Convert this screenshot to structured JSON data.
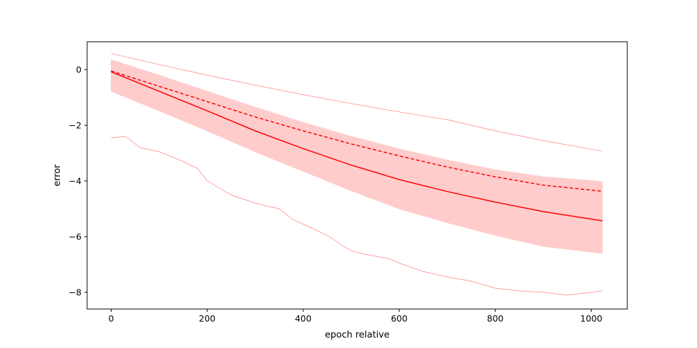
{
  "chart_data": {
    "type": "line",
    "xlabel": "epoch relative",
    "ylabel": "error",
    "xlim": [
      -50,
      1075
    ],
    "ylim": [
      -8.6,
      1.0
    ],
    "x_ticks": [
      0,
      200,
      400,
      600,
      800,
      1000
    ],
    "y_ticks": [
      0,
      -2,
      -4,
      -6,
      -8
    ],
    "x_tick_labels": [
      "0",
      "200",
      "400",
      "600",
      "800",
      "1000"
    ],
    "y_tick_labels": [
      "0",
      "−2",
      "−4",
      "−6",
      "−8"
    ],
    "grid": false,
    "colors": {
      "line": "#ff0000",
      "band": "#ffcccc",
      "thin": "#ff7f7f"
    },
    "series": [
      {
        "style": "solid",
        "x": [
          0,
          100,
          200,
          300,
          400,
          500,
          600,
          700,
          800,
          900,
          1023
        ],
        "y": [
          -0.08,
          -0.78,
          -1.48,
          -2.2,
          -2.84,
          -3.43,
          -3.95,
          -4.38,
          -4.76,
          -5.1,
          -5.43
        ]
      },
      {
        "style": "dashed",
        "x": [
          0,
          100,
          200,
          300,
          400,
          500,
          600,
          700,
          800,
          900,
          1023
        ],
        "y": [
          -0.05,
          -0.6,
          -1.15,
          -1.7,
          -2.2,
          -2.67,
          -3.1,
          -3.5,
          -3.85,
          -4.15,
          -4.37
        ]
      },
      {
        "style": "thin-upper",
        "x": [
          0,
          100,
          200,
          300,
          400,
          500,
          600,
          700,
          800,
          900,
          1023
        ],
        "y": [
          0.58,
          0.18,
          -0.2,
          -0.56,
          -0.9,
          -1.22,
          -1.52,
          -1.8,
          -2.2,
          -2.55,
          -2.93
        ]
      },
      {
        "style": "thin-lower",
        "x": [
          0,
          30,
          60,
          100,
          150,
          180,
          200,
          250,
          300,
          350,
          380,
          400,
          450,
          480,
          500,
          520,
          550,
          580,
          600,
          650,
          700,
          750,
          800,
          850,
          900,
          950,
          1000,
          1023
        ],
        "y": [
          -2.45,
          -2.4,
          -2.8,
          -2.95,
          -3.3,
          -3.55,
          -4.0,
          -4.5,
          -4.8,
          -5.0,
          -5.4,
          -5.55,
          -5.95,
          -6.3,
          -6.5,
          -6.6,
          -6.7,
          -6.8,
          -6.95,
          -7.25,
          -7.45,
          -7.6,
          -7.85,
          -7.95,
          -8.0,
          -8.1,
          -8.0,
          -7.95
        ]
      }
    ],
    "band": {
      "x": [
        0,
        100,
        200,
        300,
        400,
        500,
        600,
        700,
        800,
        900,
        1023
      ],
      "upper": [
        0.35,
        -0.2,
        -0.78,
        -1.35,
        -1.9,
        -2.4,
        -2.85,
        -3.25,
        -3.6,
        -3.85,
        -4.02
      ],
      "lower": [
        -0.78,
        -1.48,
        -2.2,
        -2.95,
        -3.65,
        -4.35,
        -5.0,
        -5.5,
        -5.95,
        -6.35,
        -6.6
      ]
    }
  }
}
